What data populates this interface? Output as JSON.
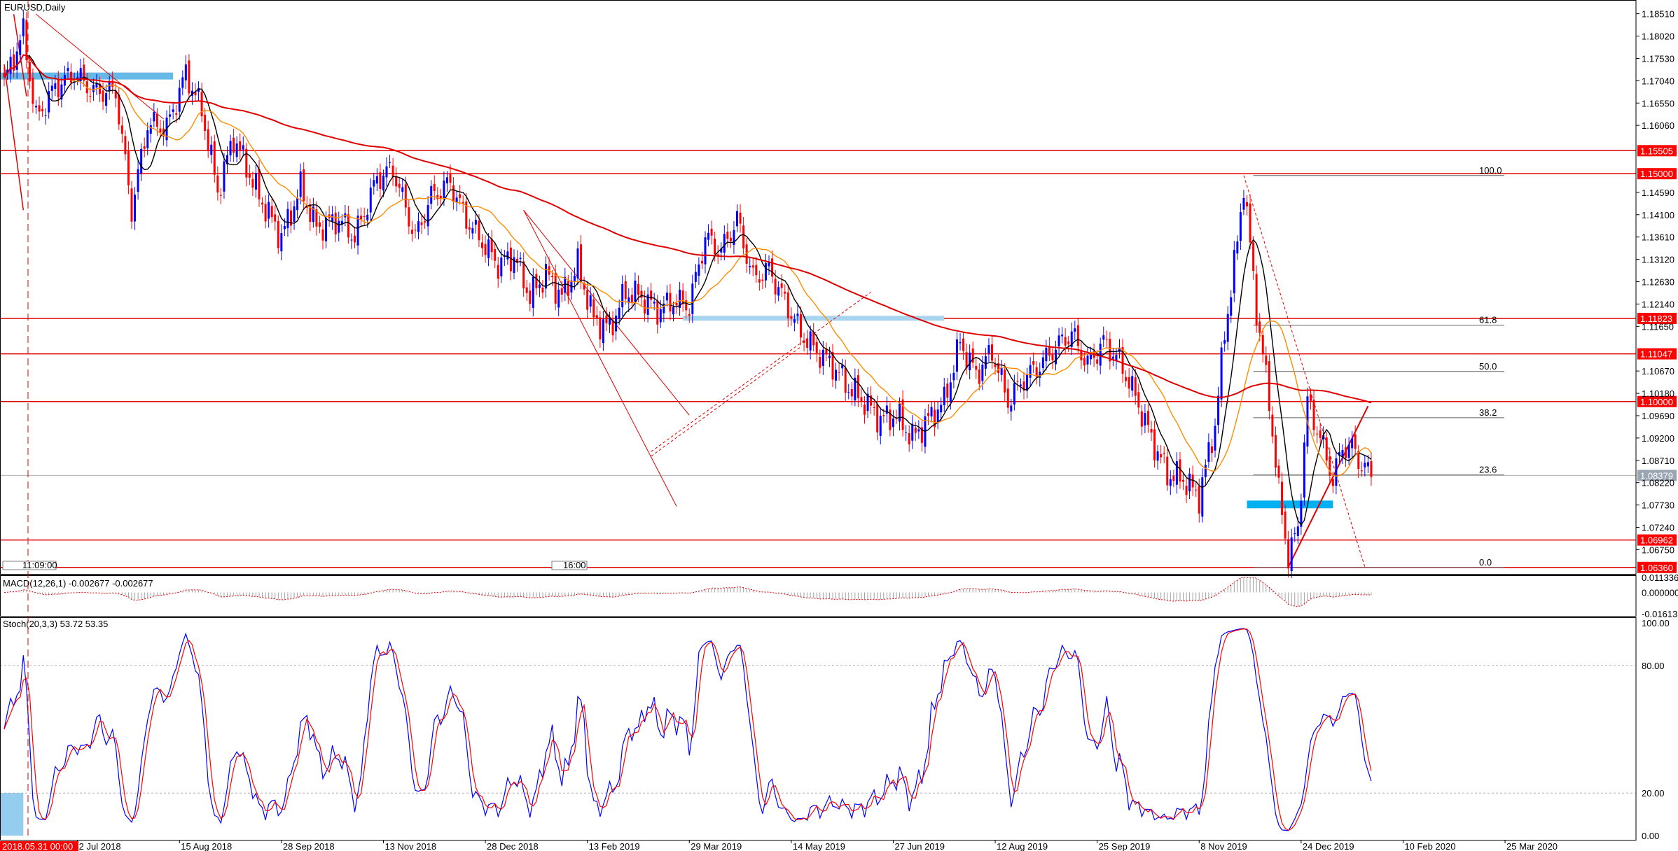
{
  "chart_data": {
    "type": "candlestick",
    "title": "EURUSD,Daily",
    "x_labels": [
      "2 Jul 2018",
      "15 Aug 2018",
      "28 Sep 2018",
      "13 Nov 2018",
      "28 Dec 2018",
      "13 Feb 2019",
      "29 Mar 2019",
      "14 May 2019",
      "27 Jun 2019",
      "12 Aug 2019",
      "25 Sep 2019",
      "8 Nov 2019",
      "24 Dec 2019",
      "10 Feb 2020",
      "25 Mar 2020"
    ],
    "x_label_index": [
      23,
      55,
      87,
      119,
      151,
      183,
      215,
      247,
      279,
      311,
      343,
      375,
      407,
      439,
      471
    ],
    "cursor_label": "2018.05.31 00:00",
    "markers": [
      "11:09:00",
      "16:00"
    ],
    "price_ticks": [
      "1.18510",
      "1.18020",
      "1.17530",
      "1.17040",
      "1.16550",
      "1.16060",
      "1.14590",
      "1.14100",
      "1.13610",
      "1.13120",
      "1.12630",
      "1.12140",
      "1.11650",
      "1.10670",
      "1.10180",
      "1.09690",
      "1.09200",
      "1.08710",
      "1.08220",
      "1.07730",
      "1.07240",
      "1.06750"
    ],
    "price_range": [
      1.0628,
      1.1875
    ],
    "levels": [
      {
        "price": 1.15505,
        "label": "1.15505"
      },
      {
        "price": 1.15,
        "label": "1.15000"
      },
      {
        "price": 1.11823,
        "label": "1.11823"
      },
      {
        "price": 1.11047,
        "label": "1.11047"
      },
      {
        "price": 1.1,
        "label": "1.10000"
      },
      {
        "price": 1.06962,
        "label": "1.06962"
      },
      {
        "price": 1.0636,
        "label": "1.06360"
      }
    ],
    "current_price": "1.08379",
    "fibonacci": {
      "high": 1.1496,
      "low": 1.0636,
      "levels": [
        {
          "ratio": 1.0,
          "label": "100.0"
        },
        {
          "ratio": 0.618,
          "label": "61.8"
        },
        {
          "ratio": 0.5,
          "label": "50.0"
        },
        {
          "ratio": 0.382,
          "label": "38.2"
        },
        {
          "ratio": 0.236,
          "label": "23.6"
        },
        {
          "ratio": 0.0,
          "label": "0.0"
        }
      ]
    },
    "ohlc_anchors": [
      [
        0,
        1.17
      ],
      [
        6,
        1.181
      ],
      [
        10,
        1.162
      ],
      [
        16,
        1.169
      ],
      [
        22,
        1.172
      ],
      [
        28,
        1.168
      ],
      [
        35,
        1.168
      ],
      [
        40,
        1.142
      ],
      [
        45,
        1.161
      ],
      [
        51,
        1.16
      ],
      [
        57,
        1.172
      ],
      [
        62,
        1.164
      ],
      [
        67,
        1.146
      ],
      [
        72,
        1.158
      ],
      [
        80,
        1.145
      ],
      [
        87,
        1.136
      ],
      [
        93,
        1.147
      ],
      [
        98,
        1.138
      ],
      [
        105,
        1.14
      ],
      [
        110,
        1.136
      ],
      [
        117,
        1.149
      ],
      [
        122,
        1.151
      ],
      [
        129,
        1.136
      ],
      [
        134,
        1.145
      ],
      [
        140,
        1.148
      ],
      [
        145,
        1.14
      ],
      [
        150,
        1.135
      ],
      [
        155,
        1.13
      ],
      [
        160,
        1.132
      ],
      [
        165,
        1.123
      ],
      [
        170,
        1.128
      ],
      [
        175,
        1.123
      ],
      [
        180,
        1.13
      ],
      [
        185,
        1.118
      ],
      [
        190,
        1.116
      ],
      [
        195,
        1.124
      ],
      [
        200,
        1.123
      ],
      [
        205,
        1.12
      ],
      [
        210,
        1.122
      ],
      [
        215,
        1.121
      ],
      [
        220,
        1.136
      ],
      [
        225,
        1.133
      ],
      [
        230,
        1.14
      ],
      [
        235,
        1.127
      ],
      [
        240,
        1.129
      ],
      [
        245,
        1.122
      ],
      [
        250,
        1.115
      ],
      [
        255,
        1.111
      ],
      [
        260,
        1.108
      ],
      [
        265,
        1.103
      ],
      [
        270,
        1.1
      ],
      [
        275,
        1.096
      ],
      [
        280,
        1.097
      ],
      [
        285,
        1.092
      ],
      [
        290,
        1.096
      ],
      [
        295,
        1.1
      ],
      [
        300,
        1.113
      ],
      [
        305,
        1.106
      ],
      [
        310,
        1.111
      ],
      [
        315,
        1.1
      ],
      [
        320,
        1.105
      ],
      [
        325,
        1.108
      ],
      [
        330,
        1.112
      ],
      [
        335,
        1.115
      ],
      [
        340,
        1.108
      ],
      [
        345,
        1.113
      ],
      [
        350,
        1.109
      ],
      [
        355,
        1.101
      ],
      [
        360,
        1.092
      ],
      [
        365,
        1.084
      ],
      [
        370,
        1.083
      ],
      [
        375,
        1.079
      ],
      [
        380,
        1.095
      ],
      [
        383,
        1.115
      ],
      [
        387,
        1.135
      ],
      [
        389,
        1.148
      ],
      [
        393,
        1.12
      ],
      [
        397,
        1.1
      ],
      [
        400,
        1.08
      ],
      [
        403,
        1.066
      ],
      [
        406,
        1.072
      ],
      [
        409,
        1.1
      ],
      [
        413,
        1.092
      ],
      [
        417,
        1.083
      ],
      [
        420,
        1.09
      ],
      [
        423,
        1.09
      ],
      [
        426,
        1.086
      ],
      [
        429,
        1.084
      ]
    ],
    "moving_averages": [
      {
        "name": "MA fast",
        "color": "#000000",
        "period": 8
      },
      {
        "name": "MA mid",
        "color": "#ff8c00",
        "period": 20
      },
      {
        "name": "MA slow",
        "color": "#e00000",
        "period": 120
      }
    ],
    "macd": {
      "label": "MACD(12,26,1) -0.002677 -0.002677",
      "ticks": [
        "0.011336",
        "0.000000",
        "-0.016135"
      ],
      "range": [
        -0.016135,
        0.011336
      ]
    },
    "stoch": {
      "label": "Stoch(20,3,3) 53.72 53.35",
      "ticks": [
        "100.00",
        "80.00",
        "20.00",
        "0.00"
      ],
      "levels": [
        80,
        20
      ]
    },
    "colors": {
      "bull": "#0000ff",
      "bear": "#ff0000",
      "level": "#e00000",
      "zone": "#66b8e6",
      "zone_strong": "#00b0f0",
      "label_bg": "#ff0000",
      "current_bg": "#9aa5b1"
    }
  }
}
